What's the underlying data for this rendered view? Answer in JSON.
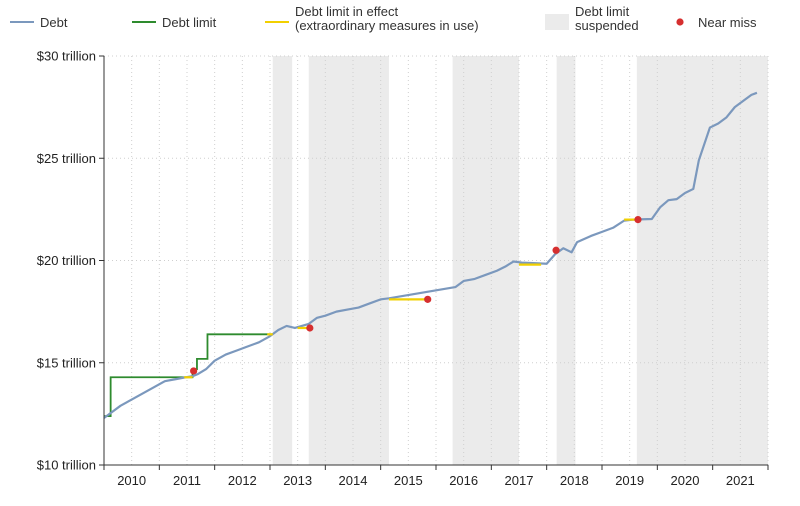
{
  "chart_data": {
    "type": "line",
    "title": "",
    "xlabel": "",
    "ylabel": "",
    "xlim": [
      2009.5,
      2021.5
    ],
    "ylim": [
      10,
      30
    ],
    "y_ticks": [
      {
        "value": 10,
        "label": "$10 trillion"
      },
      {
        "value": 15,
        "label": "$15 trillion"
      },
      {
        "value": 20,
        "label": "$20 trillion"
      },
      {
        "value": 25,
        "label": "$25 trillion"
      },
      {
        "value": 30,
        "label": "$30 trillion"
      }
    ],
    "x_ticks": [
      {
        "value": 2010,
        "label": "2010"
      },
      {
        "value": 2011,
        "label": "2011"
      },
      {
        "value": 2012,
        "label": "2012"
      },
      {
        "value": 2013,
        "label": "2013"
      },
      {
        "value": 2014,
        "label": "2014"
      },
      {
        "value": 2015,
        "label": "2015"
      },
      {
        "value": 2016,
        "label": "2016"
      },
      {
        "value": 2017,
        "label": "2017"
      },
      {
        "value": 2018,
        "label": "2018"
      },
      {
        "value": 2019,
        "label": "2019"
      },
      {
        "value": 2020,
        "label": "2020"
      },
      {
        "value": 2021,
        "label": "2021"
      }
    ],
    "grid": true,
    "legend_position": "top",
    "legend": [
      {
        "key": "debt",
        "label": "Debt",
        "marker": "line",
        "color": "#7b98bd"
      },
      {
        "key": "limit",
        "label": "Debt limit",
        "marker": "line",
        "color": "#2e8b2e"
      },
      {
        "key": "effect",
        "label": "Debt limit in effect\n(extraordinary measures in use)",
        "marker": "line",
        "color": "#f2d000"
      },
      {
        "key": "suspended",
        "label": "Debt limit\nsuspended",
        "marker": "box",
        "color": "#ebebeb"
      },
      {
        "key": "near",
        "label": "Near miss",
        "marker": "dot",
        "color": "#d62f2f"
      }
    ],
    "suspended_periods": [
      [
        2012.55,
        2012.9
      ],
      [
        2013.2,
        2014.65
      ],
      [
        2015.8,
        2017.0
      ],
      [
        2017.68,
        2018.02
      ],
      [
        2019.13,
        2021.5
      ]
    ],
    "debt_series": {
      "name": "Debt",
      "color": "#7b98bd",
      "x": [
        2009.5,
        2009.6,
        2009.8,
        2010.0,
        2010.2,
        2010.4,
        2010.6,
        2010.8,
        2011.0,
        2011.1,
        2011.2,
        2011.35,
        2011.5,
        2011.7,
        2011.9,
        2012.1,
        2012.3,
        2012.5,
        2012.65,
        2012.8,
        2012.95,
        2013.2,
        2013.35,
        2013.5,
        2013.7,
        2013.9,
        2014.1,
        2014.3,
        2014.5,
        2014.65,
        2015.85,
        2016.0,
        2016.2,
        2016.4,
        2016.6,
        2016.75,
        2016.9,
        2017.05,
        2017.5,
        2017.65,
        2017.8,
        2017.95,
        2018.05,
        2018.3,
        2018.5,
        2018.7,
        2018.9,
        2019.05,
        2019.4,
        2019.55,
        2019.7,
        2019.85,
        2020.0,
        2020.15,
        2020.25,
        2020.45,
        2020.6,
        2020.75,
        2020.9,
        2021.0,
        2021.2,
        2021.3
      ],
      "y": [
        12.3,
        12.5,
        12.9,
        13.2,
        13.5,
        13.8,
        14.1,
        14.2,
        14.3,
        14.34,
        14.45,
        14.7,
        15.1,
        15.4,
        15.6,
        15.8,
        16.0,
        16.3,
        16.6,
        16.8,
        16.7,
        16.9,
        17.2,
        17.3,
        17.5,
        17.6,
        17.7,
        17.9,
        18.1,
        18.15,
        18.7,
        19.0,
        19.1,
        19.3,
        19.5,
        19.7,
        19.95,
        19.9,
        19.84,
        20.3,
        20.6,
        20.4,
        20.9,
        21.2,
        21.4,
        21.6,
        21.95,
        22.0,
        22.03,
        22.6,
        22.95,
        23.0,
        23.3,
        23.5,
        24.9,
        26.5,
        26.7,
        27.0,
        27.5,
        27.7,
        28.1,
        28.2
      ]
    },
    "limit_series": {
      "name": "Debt limit",
      "color": "#2e8b2e",
      "x": [
        2009.5,
        2009.58,
        2009.58,
        2009.62,
        2009.62,
        2011.1,
        2011.1,
        2011.18,
        2011.18,
        2011.37,
        2011.37,
        2012.55
      ],
      "y": [
        12.39,
        12.39,
        12.39,
        12.39,
        14.29,
        14.29,
        14.69,
        14.69,
        15.19,
        15.19,
        16.39,
        16.39
      ]
    },
    "effect_periods": [
      {
        "x": [
          2010.95,
          2011.1
        ],
        "y": 14.29
      },
      {
        "x": [
          2012.45,
          2012.55
        ],
        "y": 16.39
      },
      {
        "x": [
          2013.0,
          2013.2
        ],
        "y": 16.7
      },
      {
        "x": [
          2014.65,
          2015.35
        ],
        "y": 18.1
      },
      {
        "x": [
          2017.0,
          2017.4
        ],
        "y": 19.8
      },
      {
        "x": [
          2018.9,
          2019.13
        ],
        "y": 22.0
      }
    ],
    "near_misses": [
      {
        "x": 2011.12,
        "y": 14.6
      },
      {
        "x": 2013.22,
        "y": 16.7
      },
      {
        "x": 2015.35,
        "y": 18.1
      },
      {
        "x": 2017.67,
        "y": 20.5
      },
      {
        "x": 2019.15,
        "y": 22.0
      }
    ]
  }
}
